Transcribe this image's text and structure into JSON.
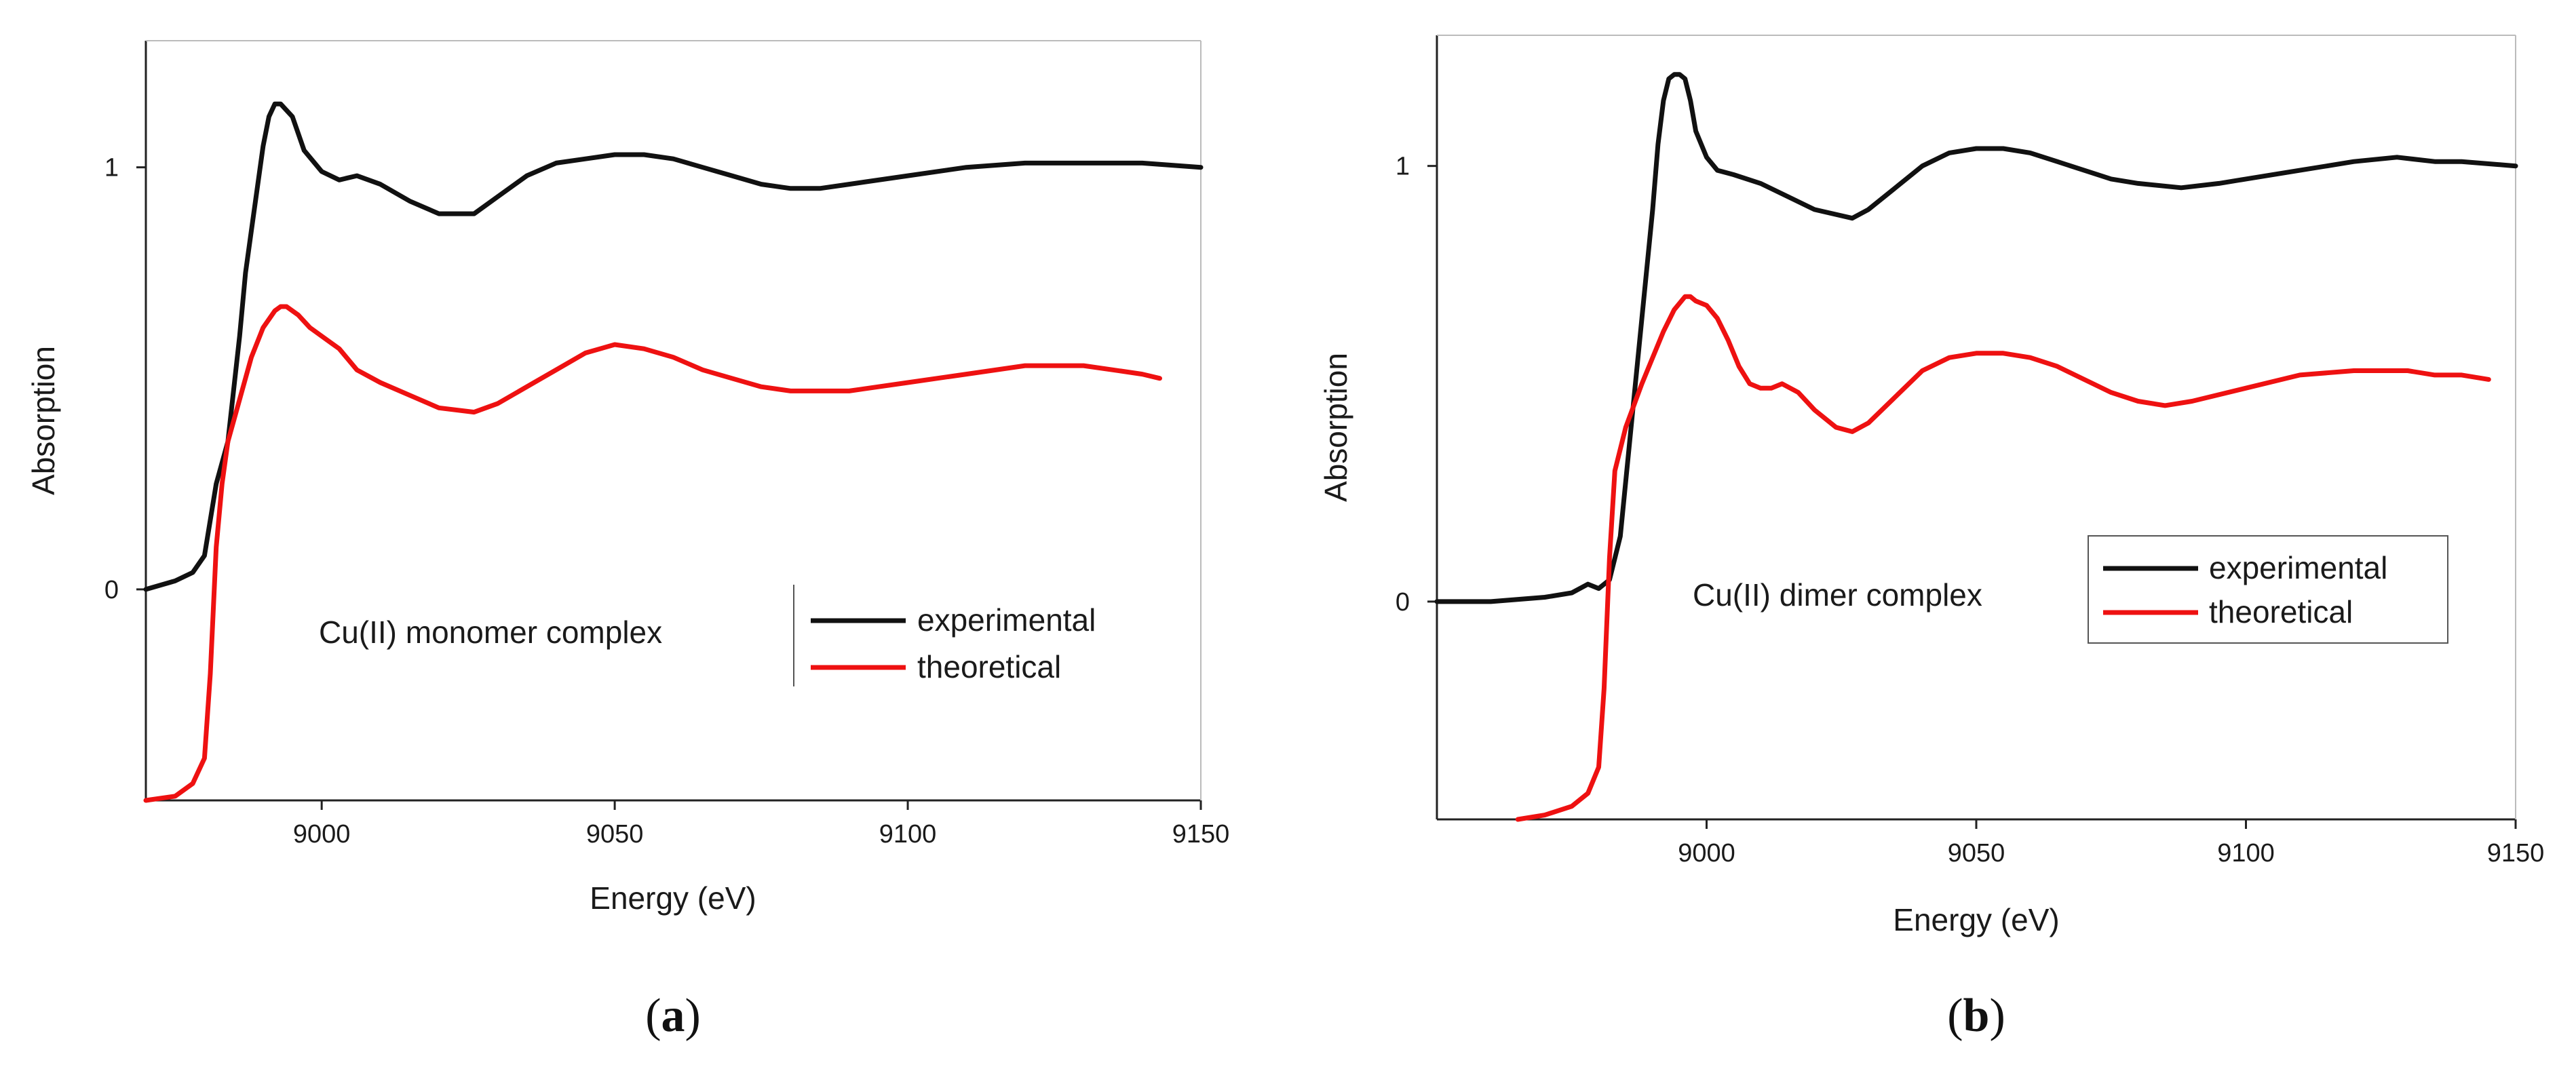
{
  "colors": {
    "experimental": "#111111",
    "theoretical": "#ee1111",
    "axis": "#222222",
    "legend_border": "#555555"
  },
  "chart_data": [
    {
      "type": "line",
      "caption": "a",
      "annotation": "Cu(II) monomer complex",
      "xlabel": "Energy (eV)",
      "ylabel": "Absorption",
      "xlim": [
        8970,
        9150
      ],
      "ylim": [
        -0.5,
        1.3
      ],
      "xticks": [
        9000,
        9050,
        9100,
        9150
      ],
      "yticks": [
        0,
        1
      ],
      "legend": {
        "position": "center-right",
        "entries": [
          "experimental",
          "theoretical"
        ],
        "frame": "left-line"
      },
      "series": [
        {
          "name": "experimental",
          "x": [
            8970,
            8975,
            8978,
            8980,
            8982,
            8984,
            8986,
            8987,
            8988,
            8990,
            8991,
            8992,
            8993,
            8995,
            8997,
            9000,
            9003,
            9006,
            9010,
            9015,
            9020,
            9026,
            9030,
            9035,
            9040,
            9045,
            9050,
            9055,
            9060,
            9065,
            9070,
            9075,
            9080,
            9085,
            9090,
            9100,
            9110,
            9120,
            9130,
            9140,
            9150
          ],
          "y": [
            0.0,
            0.02,
            0.04,
            0.08,
            0.25,
            0.35,
            0.6,
            0.75,
            0.85,
            1.05,
            1.12,
            1.15,
            1.15,
            1.12,
            1.04,
            0.99,
            0.97,
            0.98,
            0.96,
            0.92,
            0.89,
            0.89,
            0.93,
            0.98,
            1.01,
            1.02,
            1.03,
            1.03,
            1.02,
            1.0,
            0.98,
            0.96,
            0.95,
            0.95,
            0.96,
            0.98,
            1.0,
            1.01,
            1.01,
            1.01,
            1.0
          ]
        },
        {
          "name": "theoretical",
          "x": [
            8970,
            8975,
            8978,
            8980,
            8981,
            8982,
            8983,
            8984,
            8986,
            8988,
            8990,
            8992,
            8993,
            8994,
            8996,
            8998,
            9000,
            9003,
            9006,
            9010,
            9015,
            9020,
            9026,
            9030,
            9035,
            9040,
            9045,
            9050,
            9055,
            9060,
            9065,
            9070,
            9075,
            9080,
            9085,
            9090,
            9100,
            9110,
            9120,
            9125,
            9130,
            9135,
            9140,
            9143
          ],
          "y": [
            -0.5,
            -0.49,
            -0.46,
            -0.4,
            -0.2,
            0.1,
            0.25,
            0.35,
            0.45,
            0.55,
            0.62,
            0.66,
            0.67,
            0.67,
            0.65,
            0.62,
            0.6,
            0.57,
            0.52,
            0.49,
            0.46,
            0.43,
            0.42,
            0.44,
            0.48,
            0.52,
            0.56,
            0.58,
            0.57,
            0.55,
            0.52,
            0.5,
            0.48,
            0.47,
            0.47,
            0.47,
            0.49,
            0.51,
            0.53,
            0.53,
            0.53,
            0.52,
            0.51,
            0.5
          ]
        }
      ]
    },
    {
      "type": "line",
      "caption": "b",
      "annotation": "Cu(II) dimer complex",
      "xlabel": "Energy (eV)",
      "ylabel": "Absorption",
      "xlim": [
        8950,
        9150
      ],
      "ylim": [
        -0.5,
        1.3
      ],
      "xticks": [
        9000,
        9050,
        9100,
        9150
      ],
      "yticks": [
        0,
        1
      ],
      "legend": {
        "position": "center-right",
        "entries": [
          "experimental",
          "theoretical"
        ],
        "frame": "box"
      },
      "series": [
        {
          "name": "experimental",
          "x": [
            8950,
            8960,
            8970,
            8975,
            8978,
            8980,
            8982,
            8984,
            8986,
            8988,
            8990,
            8991,
            8992,
            8993,
            8994,
            8995,
            8996,
            8997,
            8998,
            9000,
            9002,
            9005,
            9010,
            9015,
            9020,
            9027,
            9030,
            9035,
            9040,
            9045,
            9050,
            9055,
            9060,
            9065,
            9070,
            9075,
            9080,
            9088,
            9095,
            9100,
            9110,
            9120,
            9128,
            9135,
            9140,
            9150
          ],
          "y": [
            0.0,
            0.0,
            0.01,
            0.02,
            0.04,
            0.03,
            0.05,
            0.15,
            0.4,
            0.65,
            0.9,
            1.05,
            1.15,
            1.2,
            1.21,
            1.21,
            1.2,
            1.15,
            1.08,
            1.02,
            0.99,
            0.98,
            0.96,
            0.93,
            0.9,
            0.88,
            0.9,
            0.95,
            1.0,
            1.03,
            1.04,
            1.04,
            1.03,
            1.01,
            0.99,
            0.97,
            0.96,
            0.95,
            0.96,
            0.97,
            0.99,
            1.01,
            1.02,
            1.01,
            1.01,
            1.0
          ]
        },
        {
          "name": "theoretical",
          "x": [
            8965,
            8970,
            8975,
            8978,
            8980,
            8981,
            8982,
            8983,
            8985,
            8988,
            8990,
            8992,
            8994,
            8996,
            8997,
            8998,
            9000,
            9002,
            9004,
            9006,
            9008,
            9010,
            9012,
            9014,
            9017,
            9020,
            9024,
            9027,
            9030,
            9035,
            9040,
            9045,
            9050,
            9055,
            9060,
            9065,
            9070,
            9075,
            9080,
            9085,
            9090,
            9100,
            9110,
            9120,
            9125,
            9130,
            9135,
            9140,
            9145
          ],
          "y": [
            -0.5,
            -0.49,
            -0.47,
            -0.44,
            -0.38,
            -0.2,
            0.1,
            0.3,
            0.4,
            0.5,
            0.56,
            0.62,
            0.67,
            0.7,
            0.7,
            0.69,
            0.68,
            0.65,
            0.6,
            0.54,
            0.5,
            0.49,
            0.49,
            0.5,
            0.48,
            0.44,
            0.4,
            0.39,
            0.41,
            0.47,
            0.53,
            0.56,
            0.57,
            0.57,
            0.56,
            0.54,
            0.51,
            0.48,
            0.46,
            0.45,
            0.46,
            0.49,
            0.52,
            0.53,
            0.53,
            0.53,
            0.52,
            0.52,
            0.51
          ]
        }
      ]
    }
  ]
}
